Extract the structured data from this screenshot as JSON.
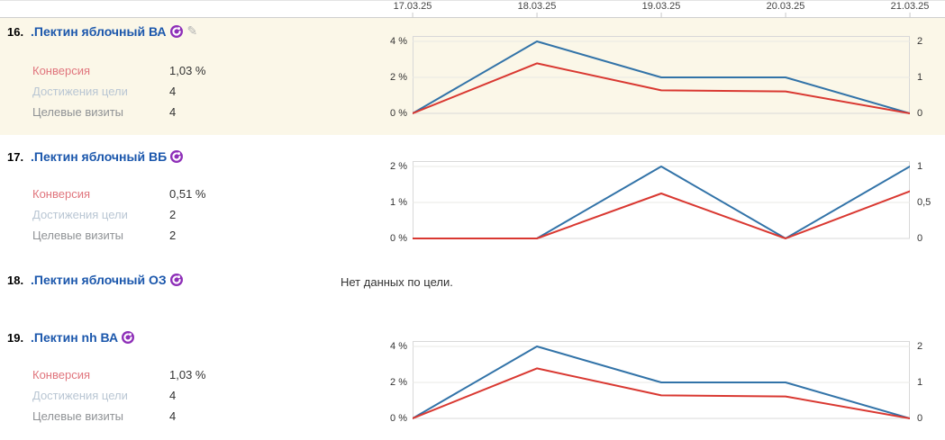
{
  "date_axis": {
    "labels": [
      "17.03.25",
      "18.03.25",
      "19.03.25",
      "20.03.25",
      "21.03.25"
    ]
  },
  "colors": {
    "goal_reaches_line": "#3273a8",
    "conversion_line": "#d93831",
    "title_link": "#1b57ac",
    "conversion_label": "#e0757d",
    "goal_reaches_label": "#b9c6d3",
    "target_visits_label": "#8f9295",
    "highlight_row_bg": "#fbf7e8",
    "goal_icon_bg": "#8e2fb8"
  },
  "rows": [
    {
      "index": "16.",
      "title": ".Пектин яблочный ВА",
      "metrics": [
        {
          "label": "Конверсия",
          "value": "1,03 %"
        },
        {
          "label": "Достижения цели",
          "value": "4"
        },
        {
          "label": "Целевые визиты",
          "value": "4"
        }
      ]
    },
    {
      "index": "17.",
      "title": ".Пектин яблочный ВБ",
      "metrics": [
        {
          "label": "Конверсия",
          "value": "0,51 %"
        },
        {
          "label": "Достижения цели",
          "value": "2"
        },
        {
          "label": "Целевые визиты",
          "value": "2"
        }
      ]
    },
    {
      "index": "18.",
      "title": ".Пектин яблочный ОЗ",
      "no_data_message": "Нет данных по цели."
    },
    {
      "index": "19.",
      "title": ".Пектин nh ВА",
      "metrics": [
        {
          "label": "Конверсия",
          "value": "1,03 %"
        },
        {
          "label": "Достижения цели",
          "value": "4"
        },
        {
          "label": "Целевые визиты",
          "value": "4"
        }
      ]
    }
  ],
  "chart_data": [
    {
      "type": "line",
      "x": [
        "17.03.25",
        "18.03.25",
        "19.03.25",
        "20.03.25",
        "21.03.25"
      ],
      "yaxis_left": {
        "ticks": [
          "4 %",
          "2 %",
          "0 %"
        ],
        "range": [
          0,
          4
        ]
      },
      "yaxis_right": {
        "ticks": [
          "2",
          "1",
          "0"
        ],
        "range": [
          0,
          2
        ]
      },
      "series": [
        {
          "name": "Достижения цели",
          "axis": "right",
          "color": "#3273a8",
          "values": [
            0,
            2,
            1,
            1,
            0
          ]
        },
        {
          "name": "Конверсия",
          "axis": "left",
          "color": "#d93831",
          "values": [
            0,
            2.78,
            1.28,
            1.22,
            0
          ]
        }
      ],
      "grid": true,
      "legend": "none"
    },
    {
      "type": "line",
      "x": [
        "17.03.25",
        "18.03.25",
        "19.03.25",
        "20.03.25",
        "21.03.25"
      ],
      "yaxis_left": {
        "ticks": [
          "2 %",
          "1 %",
          "0 %"
        ],
        "range": [
          0,
          2
        ]
      },
      "yaxis_right": {
        "ticks": [
          "1",
          "0,5",
          "0"
        ],
        "range": [
          0,
          1
        ]
      },
      "series": [
        {
          "name": "Достижения цели",
          "axis": "right",
          "color": "#3273a8",
          "values": [
            0,
            0,
            1,
            0,
            1
          ]
        },
        {
          "name": "Конверсия",
          "axis": "left",
          "color": "#d93831",
          "values": [
            0,
            0,
            1.25,
            0,
            1.31
          ]
        }
      ],
      "grid": true,
      "legend": "none"
    },
    {
      "type": "line",
      "x": [
        "17.03.25",
        "18.03.25",
        "19.03.25",
        "20.03.25",
        "21.03.25"
      ],
      "yaxis_left": {
        "ticks": [
          "4 %",
          "2 %",
          "0 %"
        ],
        "range": [
          0,
          4
        ]
      },
      "yaxis_right": {
        "ticks": [
          "2",
          "1",
          "0"
        ],
        "range": [
          0,
          2
        ]
      },
      "series": [
        {
          "name": "Достижения цели",
          "axis": "right",
          "color": "#3273a8",
          "values": [
            0,
            2,
            1,
            1,
            0
          ]
        },
        {
          "name": "Конверсия",
          "axis": "left",
          "color": "#d93831",
          "values": [
            0,
            2.78,
            1.28,
            1.22,
            0
          ]
        }
      ],
      "grid": true,
      "legend": "none"
    }
  ]
}
